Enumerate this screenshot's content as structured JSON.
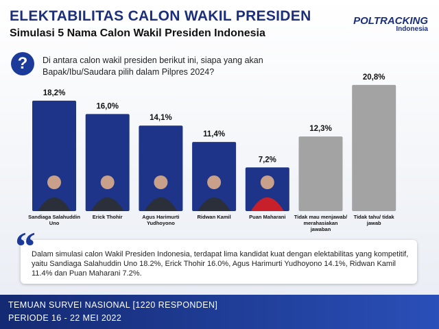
{
  "header": {
    "title": "ELEKTABILITAS CALON WAKIL PRESIDEN",
    "subtitle": "Simulasi 5 Nama Calon Wakil Presiden Indonesia",
    "logo": "POLTRACKING",
    "logo_sub": "Indonesia"
  },
  "question": "Di antara calon wakil presiden berikut ini, siapa yang akan Bapak/Ibu/Saudara pilih dalam Pilpres 2024?",
  "chart_data": {
    "type": "bar",
    "categories": [
      "Sandiaga Salahuddin Uno",
      "Erick Thohir",
      "Agus Harimurti Yudhoyono",
      "Ridwan Kamil",
      "Puan Maharani",
      "Tidak mau menjawab/ merahasiakan jawaban",
      "Tidak tahu/ tidak jawab"
    ],
    "values": [
      18.2,
      16.0,
      14.1,
      11.4,
      7.2,
      12.3,
      20.8
    ],
    "value_labels": [
      "18,2%",
      "16,0%",
      "14,1%",
      "11,4%",
      "7,2%",
      "12,3%",
      "20,8%"
    ],
    "colors": [
      "#1d3488",
      "#1d3488",
      "#1d3488",
      "#1d3488",
      "#1d3488",
      "#a3a3a3",
      "#a3a3a3"
    ]
  },
  "quote": "Dalam simulasi calon Wakil Presiden Indonesia, terdapat lima kandidat kuat dengan elektabilitas yang kompetitif, yaitu Sandiaga Salahuddin Uno 18.2%, Erick Thohir 16.0%, Agus Harimurti Yudhoyono 14.1%, Ridwan Kamil 11.4% dan Puan Maharani 7.2%.",
  "footer": {
    "line1": "TEMUAN SURVEI NASIONAL [1220 RESPONDEN]",
    "line2": "PERIODE 16 - 22 MEI 2022"
  }
}
